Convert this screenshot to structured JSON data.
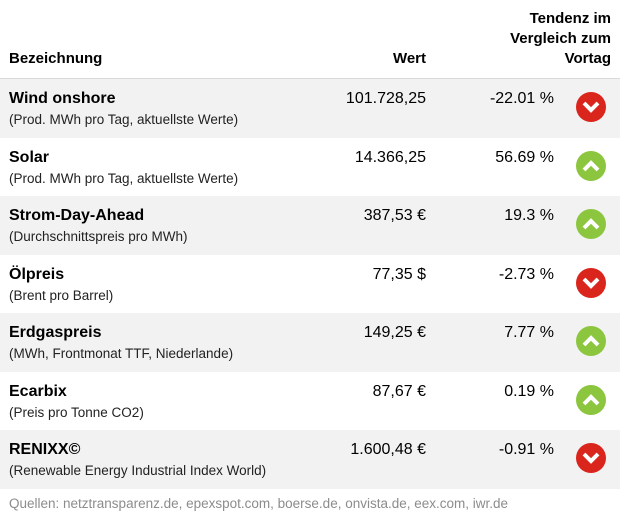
{
  "header": {
    "name": "Bezeichnung",
    "value": "Wert",
    "trend_lines": [
      "Tendenz im",
      "Vergleich zum",
      "Vortag"
    ]
  },
  "rows": [
    {
      "name": "Wind onshore",
      "sub": "(Prod. MWh pro Tag, aktuellste Werte)",
      "value": "101.728,25",
      "change": "-22.01 %",
      "direction": "down"
    },
    {
      "name": "Solar",
      "sub": "(Prod. MWh pro Tag, aktuellste Werte)",
      "value": "14.366,25",
      "change": "56.69 %",
      "direction": "up"
    },
    {
      "name": "Strom-Day-Ahead",
      "sub": "(Durchschnittspreis pro MWh)",
      "value": "387,53 €",
      "change": "19.3 %",
      "direction": "up"
    },
    {
      "name": "Ölpreis",
      "sub": "(Brent pro Barrel)",
      "value": "77,35 $",
      "change": "-2.73 %",
      "direction": "down"
    },
    {
      "name": "Erdgaspreis",
      "sub": "(MWh, Frontmonat TTF, Niederlande)",
      "value": "149,25 €",
      "change": "7.77 %",
      "direction": "up"
    },
    {
      "name": "Ecarbix",
      "sub": "(Preis pro Tonne CO2)",
      "value": "87,67 €",
      "change": "0.19 %",
      "direction": "up"
    },
    {
      "name": "RENIXX©",
      "sub": "(Renewable Energy Industrial Index World)",
      "value": "1.600,48 €",
      "change": "-0.91 %",
      "direction": "down"
    }
  ],
  "colors": {
    "down": "#d9251c",
    "up": "#8cc63f"
  },
  "icons": {
    "down": "arrow-down-icon",
    "up": "arrow-up-icon"
  },
  "footer": "Quellen: netztransparenz.de, epexspot.com, boerse.de, onvista.de, eex.com, iwr.de"
}
